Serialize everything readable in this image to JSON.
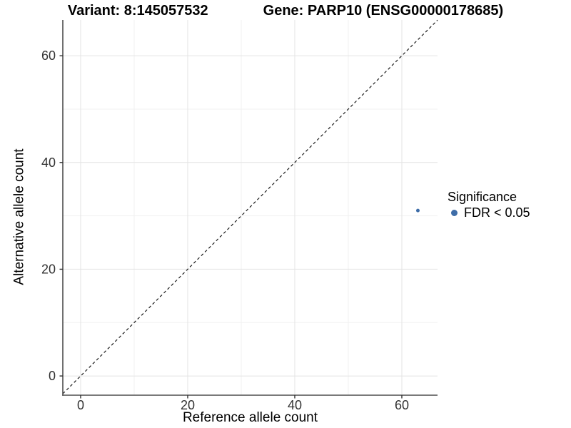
{
  "header": {
    "variant_title": "Variant: 8:145057532",
    "gene_title": "Gene: PARP10 (ENSG00000178685)"
  },
  "legend": {
    "title": "Significance",
    "items": [
      {
        "label": "FDR < 0.05",
        "color": "#3E6DA8"
      }
    ]
  },
  "chart_data": {
    "type": "scatter",
    "title": "Variant: 8:145057532   Gene: PARP10 (ENSG00000178685)",
    "xlabel": "Reference allele count",
    "ylabel": "Alternative allele count",
    "xlim": [
      -3.33,
      66.67
    ],
    "ylim": [
      -3.6,
      66.7
    ],
    "xticks": [
      0,
      20,
      40,
      60
    ],
    "yticks": [
      0,
      20,
      40,
      60
    ],
    "x_minor_ticks": [
      10,
      30,
      50
    ],
    "y_minor_ticks": [
      10,
      30,
      50
    ],
    "grid": true,
    "legend_position": "right",
    "series": [
      {
        "name": "FDR < 0.05",
        "color": "#3E6DA8",
        "points": [
          {
            "x": 63,
            "y": 31
          }
        ]
      }
    ],
    "reference_line": {
      "kind": "identity y=x",
      "style": "dashed",
      "color": "#1a1a1a"
    }
  },
  "colors": {
    "point": "#3E6DA8",
    "grid_major": "#E4E4E4",
    "grid_minor": "#F1F1F1",
    "axis_line": "#4D4D4D",
    "tick_mark": "#333333",
    "tick_text": "#333333",
    "background": "#FFFFFF"
  }
}
